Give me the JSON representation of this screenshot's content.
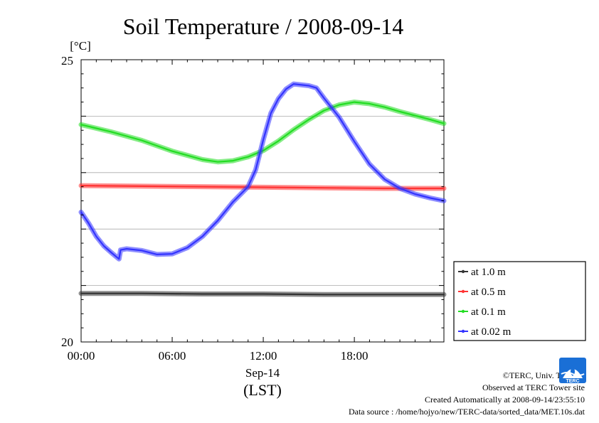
{
  "chart_data": {
    "type": "line",
    "title": "Soil Temperature / 2008-09-14",
    "yunit": "[°C]",
    "xlabel_date": "Sep-14",
    "xlabel_tz": "(LST)",
    "ylim": [
      20,
      25
    ],
    "xlim": [
      0,
      23.9
    ],
    "y_ticks": [
      "25",
      "20"
    ],
    "x_ticks": [
      {
        "value": 0,
        "label": "00:00"
      },
      {
        "value": 6,
        "label": "06:00"
      },
      {
        "value": 12,
        "label": "12:00"
      },
      {
        "value": 18,
        "label": "18:00"
      }
    ],
    "grid": true,
    "legend_position": "right",
    "series": [
      {
        "name": "at 1.0 m",
        "color": "#333333",
        "x": [
          0,
          4,
          8,
          12,
          16,
          20,
          23.9
        ],
        "y": [
          20.86,
          20.86,
          20.85,
          20.85,
          20.84,
          20.84,
          20.84
        ]
      },
      {
        "name": "at 0.5 m",
        "color": "#ff3333",
        "x": [
          0,
          4,
          8,
          12,
          16,
          20,
          23.9
        ],
        "y": [
          22.77,
          22.76,
          22.75,
          22.74,
          22.73,
          22.72,
          22.72
        ]
      },
      {
        "name": "at 0.1 m",
        "color": "#22dd22",
        "x": [
          0,
          2,
          4,
          6,
          8,
          9,
          10,
          11,
          12,
          13,
          14,
          15,
          16,
          17,
          18,
          19,
          20,
          21,
          22,
          23,
          23.9
        ],
        "y": [
          23.85,
          23.72,
          23.57,
          23.38,
          23.23,
          23.19,
          23.21,
          23.28,
          23.39,
          23.56,
          23.76,
          23.94,
          24.1,
          24.2,
          24.25,
          24.22,
          24.16,
          24.08,
          24.01,
          23.94,
          23.87
        ]
      },
      {
        "name": "at 0.02 m",
        "color": "#3333ff",
        "x": [
          0,
          0.5,
          1,
          1.5,
          2,
          2.5,
          2.6,
          3,
          4,
          5,
          6,
          7,
          8,
          9,
          10,
          11,
          11.5,
          12,
          12.5,
          13,
          13.5,
          14,
          15,
          15.5,
          16,
          17,
          18,
          19,
          20,
          21,
          22,
          23,
          23.9
        ],
        "y": [
          22.3,
          22.1,
          21.87,
          21.7,
          21.58,
          21.47,
          21.63,
          21.65,
          21.62,
          21.55,
          21.56,
          21.67,
          21.87,
          22.15,
          22.48,
          22.75,
          23.05,
          23.58,
          24.05,
          24.31,
          24.48,
          24.57,
          24.54,
          24.5,
          24.32,
          23.98,
          23.55,
          23.15,
          22.88,
          22.72,
          22.62,
          22.55,
          22.5
        ]
      }
    ]
  },
  "credits": {
    "copyright": "©TERC, Univ. Tsukuba",
    "observed": "Observed at TERC Tower site",
    "created": "Created Automatically at 2008-09-14/23:55:10",
    "source": "Data source : /home/hojyo/new/TERC-data/sorted_data/MET.10s.dat"
  },
  "logo": {
    "text": "TERC",
    "color": "#1a6fd6"
  }
}
